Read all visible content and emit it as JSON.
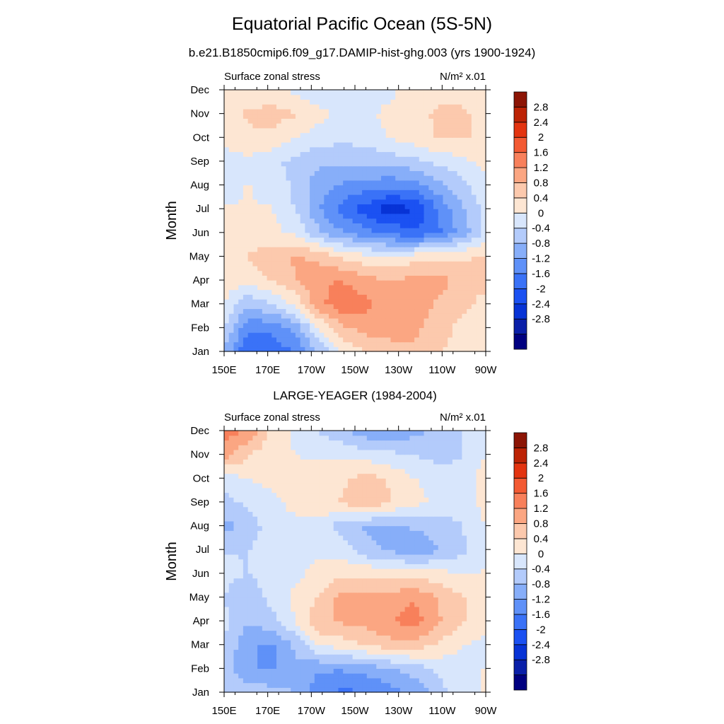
{
  "title": "Equatorial Pacific Ocean (5S-5N)",
  "subtitle": "b.e21.B1850cmip6.f09_g17.DAMIP-hist-ghg.003 (yrs 1900-1924)",
  "colors": {
    "bins": [
      "#000080",
      "#0a1fa8",
      "#0733d6",
      "#1b51f2",
      "#3a72f7",
      "#5f91f8",
      "#87aef9",
      "#b3cbfb",
      "#d8e6fc",
      "#fde6d3",
      "#fcc9ad",
      "#fba682",
      "#f8805b",
      "#f35a33",
      "#e33410",
      "#bc2305",
      "#8c1505"
    ]
  },
  "colorbar": {
    "ticks": [
      "2.8",
      "2.4",
      "2",
      "1.6",
      "1.2",
      "0.8",
      "0.4",
      "0",
      "-0.4",
      "-0.8",
      "-1.2",
      "-1.6",
      "-2",
      "-2.4",
      "-2.8"
    ]
  },
  "chart_data": [
    {
      "type": "heatmap",
      "panel_title": "",
      "left_label": "Surface zonal stress",
      "right_label": "N/m² x.01",
      "ylabel": "Month",
      "x": [
        "150E",
        "170E",
        "170W",
        "150W",
        "130W",
        "110W",
        "90W"
      ],
      "y": [
        "Jan",
        "Feb",
        "Mar",
        "Apr",
        "May",
        "Jun",
        "Jul",
        "Aug",
        "Sep",
        "Oct",
        "Nov",
        "Dec"
      ],
      "z": [
        [
          -0.6,
          -1.7,
          -1.6,
          -1.3,
          -0.5,
          0.2,
          0.6,
          0.8,
          0.9,
          0.6,
          0.4,
          0.2
        ],
        [
          -0.2,
          -1.2,
          -1.2,
          -0.8,
          0.2,
          0.9,
          1.1,
          1.1,
          1.0,
          0.8,
          0.4,
          0.2
        ],
        [
          0.2,
          -0.5,
          -0.2,
          0.3,
          1.2,
          1.6,
          1.4,
          1.2,
          1.1,
          0.9,
          0.7,
          0.4
        ],
        [
          0.4,
          0.3,
          0.6,
          0.9,
          1.3,
          1.3,
          1.1,
          0.9,
          1.1,
          1.1,
          0.8,
          0.7
        ],
        [
          0.5,
          0.6,
          0.8,
          1.0,
          0.8,
          0.5,
          0.3,
          0.2,
          0.4,
          0.5,
          0.5,
          0.6
        ],
        [
          0.3,
          0.3,
          0.3,
          0.1,
          -0.5,
          -0.9,
          -1.2,
          -1.4,
          -1.6,
          -1.4,
          -0.8,
          -0.1
        ],
        [
          0.2,
          0.2,
          0.2,
          -0.2,
          -0.9,
          -1.5,
          -1.9,
          -2.3,
          -2.1,
          -1.3,
          -0.6,
          -0.1
        ],
        [
          0.1,
          0.2,
          0.1,
          -0.3,
          -0.8,
          -1.0,
          -1.1,
          -1.2,
          -1.1,
          -0.7,
          -0.3,
          0.1
        ],
        [
          0.0,
          0.1,
          -0.1,
          -0.3,
          -0.5,
          -0.5,
          -0.5,
          -0.4,
          -0.3,
          -0.1,
          0.1,
          0.3
        ],
        [
          0.3,
          0.5,
          0.5,
          0.2,
          0.0,
          -0.1,
          0.0,
          0.2,
          0.4,
          0.6,
          0.6,
          0.5
        ],
        [
          0.5,
          0.6,
          0.7,
          0.6,
          0.3,
          0.1,
          0.1,
          0.3,
          0.5,
          0.6,
          0.6,
          0.5
        ],
        [
          0.4,
          0.4,
          0.3,
          0.1,
          -0.1,
          -0.1,
          0.0,
          0.1,
          0.4,
          0.5,
          0.5,
          0.4
        ]
      ],
      "zlim": [
        -3.2,
        3.2
      ]
    },
    {
      "type": "heatmap",
      "panel_title": "LARGE-YEAGER (1984-2004)",
      "left_label": "Surface zonal stress",
      "right_label": "N/m² x.01",
      "ylabel": "Month",
      "x": [
        "150E",
        "170E",
        "170W",
        "150W",
        "130W",
        "110W",
        "90W"
      ],
      "y": [
        "Jan",
        "Feb",
        "Mar",
        "Apr",
        "May",
        "Jun",
        "Jul",
        "Aug",
        "Sep",
        "Oct",
        "Nov",
        "Dec"
      ],
      "z": [
        [
          -0.3,
          -0.3,
          -0.4,
          -0.6,
          -1.2,
          -1.4,
          -1.3,
          -1.1,
          -0.8,
          -0.4,
          0.1,
          0.2
        ],
        [
          -0.3,
          -0.9,
          -1.0,
          -0.6,
          -0.9,
          -0.9,
          -0.8,
          -0.6,
          -0.4,
          -0.1,
          0.1,
          0.2
        ],
        [
          -0.2,
          -0.9,
          -1.0,
          -0.5,
          0.2,
          0.4,
          0.6,
          0.8,
          0.8,
          0.5,
          0.2,
          0.1
        ],
        [
          -0.1,
          -0.5,
          -0.3,
          0.2,
          0.9,
          1.0,
          1.1,
          1.3,
          1.5,
          1.0,
          0.6,
          0.3
        ],
        [
          -0.2,
          -0.4,
          -0.1,
          0.3,
          0.6,
          1.1,
          1.0,
          1.1,
          1.3,
          0.9,
          0.6,
          0.3
        ],
        [
          -0.1,
          -0.2,
          0.0,
          0.1,
          0.3,
          0.5,
          0.5,
          0.4,
          0.4,
          0.3,
          0.2,
          0.2
        ],
        [
          -0.2,
          -0.2,
          0.0,
          0.1,
          0.1,
          0.0,
          -0.5,
          -0.6,
          -0.9,
          -0.6,
          -0.3,
          0.2
        ],
        [
          -0.7,
          -0.4,
          0.0,
          0.1,
          0.0,
          -0.4,
          -0.6,
          -0.7,
          -0.5,
          -0.4,
          -0.2,
          0.2
        ],
        [
          -0.3,
          -0.1,
          0.1,
          0.3,
          0.5,
          0.6,
          0.9,
          0.6,
          0.3,
          0.1,
          0.0,
          0.3
        ],
        [
          0.0,
          0.2,
          0.3,
          0.3,
          0.4,
          0.5,
          0.7,
          0.5,
          0.2,
          0.0,
          -0.1,
          0.4
        ],
        [
          1.1,
          0.6,
          0.3,
          0.2,
          0.1,
          0.1,
          0.0,
          -0.1,
          -0.2,
          -0.3,
          -0.2,
          0.2
        ],
        [
          1.5,
          1.3,
          0.4,
          0.1,
          -0.2,
          -0.5,
          -0.8,
          -0.9,
          -0.7,
          -0.4,
          -0.2,
          0.1
        ]
      ],
      "zlim": [
        -3.2,
        3.2
      ]
    }
  ]
}
